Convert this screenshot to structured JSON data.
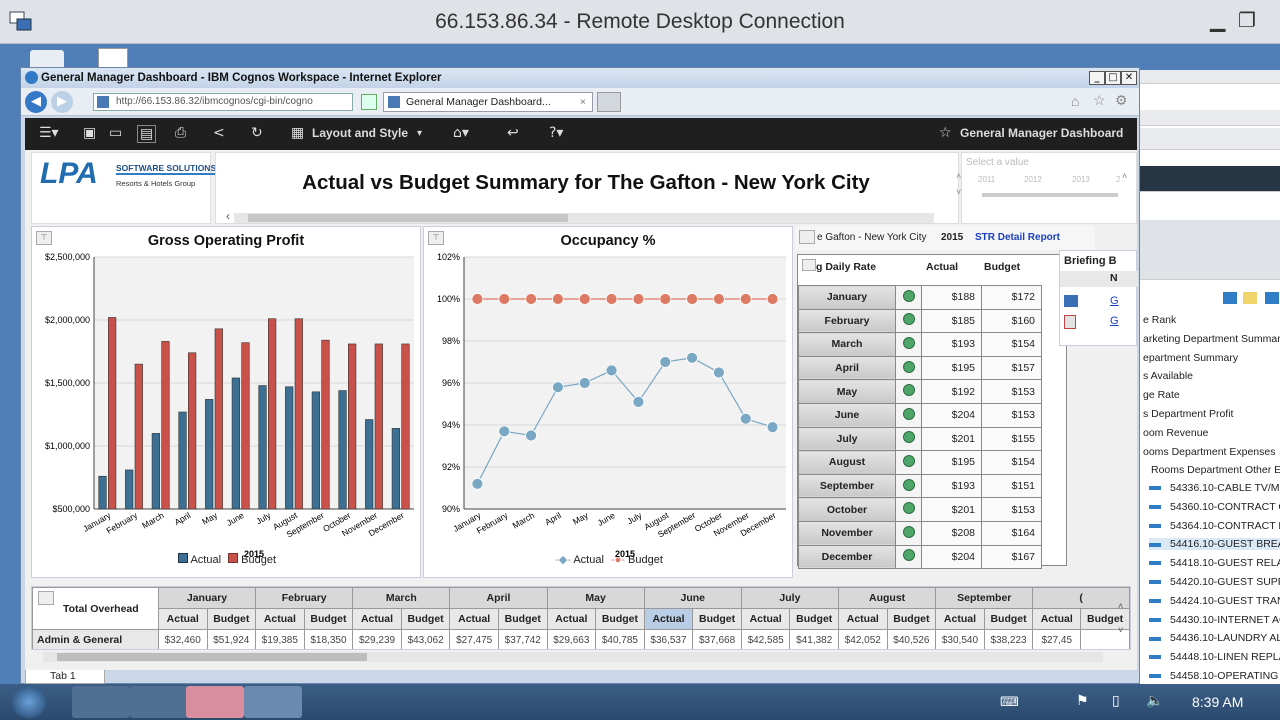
{
  "rdp": {
    "title": "66.153.86.34 - Remote Desktop Connection"
  },
  "ie": {
    "title": "General Manager Dashboard - IBM Cognos Workspace - Internet Explorer",
    "address": "http://66.153.86.32/ibmcognos/cgi-bin/cogno",
    "tab_label": "General Manager Dashboard..."
  },
  "cognos_toolbar": {
    "layout_label": "Layout and Style",
    "dashboard_name": "General Manager Dashboard"
  },
  "header": {
    "logo_main": "LPA",
    "logo_sub1": "SOFTWARE SOLUTIONS",
    "logo_sub2": "Resorts & Hotels Group",
    "title": "Actual vs Budget Summary for The Gafton - New York City",
    "select_placeholder": "Select a value",
    "years": [
      "2011",
      "2012",
      "2013",
      "2"
    ]
  },
  "gop_chart": {
    "title": "Gross Operating Profit",
    "xlabel": "2015",
    "legend": [
      "Actual",
      "Budget"
    ]
  },
  "occ_chart": {
    "title": "Occupancy %",
    "xlabel": "2015",
    "legend": [
      "Actual",
      "Budget"
    ]
  },
  "chart_data": [
    {
      "type": "bar",
      "title": "Gross Operating Profit",
      "xlabel": "2015",
      "categories": [
        "January",
        "February",
        "March",
        "April",
        "May",
        "June",
        "July",
        "August",
        "September",
        "October",
        "November",
        "December"
      ],
      "ylim": [
        500000,
        2500000
      ],
      "yticks": [
        "$500,000",
        "$1,000,000",
        "$1,500,000",
        "$2,000,000",
        "$2,500,000"
      ],
      "series": [
        {
          "name": "Actual",
          "color": "#3b6f93",
          "values": [
            760000,
            810000,
            1100000,
            1270000,
            1370000,
            1540000,
            1480000,
            1470000,
            1430000,
            1440000,
            1210000,
            1140000
          ]
        },
        {
          "name": "Budget",
          "color": "#c8524a",
          "values": [
            2020000,
            1650000,
            1830000,
            1740000,
            1930000,
            1820000,
            2010000,
            2010000,
            1840000,
            1810000,
            1810000,
            1810000
          ]
        }
      ]
    },
    {
      "type": "line",
      "title": "Occupancy %",
      "xlabel": "2015",
      "categories": [
        "January",
        "February",
        "March",
        "April",
        "May",
        "June",
        "July",
        "August",
        "September",
        "October",
        "November",
        "December"
      ],
      "ylim": [
        90,
        102
      ],
      "yticks": [
        "90%",
        "92%",
        "94%",
        "96%",
        "98%",
        "100%",
        "102%"
      ],
      "series": [
        {
          "name": "Actual",
          "color": "#7aa8c4",
          "values": [
            91.2,
            93.7,
            93.5,
            95.8,
            96.0,
            96.6,
            95.1,
            97.0,
            97.2,
            96.5,
            94.3,
            93.9
          ]
        },
        {
          "name": "Budget",
          "color": "#dd7a64",
          "values": [
            100,
            100,
            100,
            100,
            100,
            100,
            100,
            100,
            100,
            100,
            100,
            100
          ]
        }
      ]
    }
  ],
  "rate_panel": {
    "hotel": "e Gafton - New York City",
    "year": "2015",
    "link": "STR Detail Report",
    "col0": "g Daily Rate",
    "col_actual": "Actual",
    "col_budget": "Budget",
    "rows": [
      {
        "month": "January",
        "actual": "$188",
        "budget": "$172"
      },
      {
        "month": "February",
        "actual": "$185",
        "budget": "$160"
      },
      {
        "month": "March",
        "actual": "$193",
        "budget": "$154"
      },
      {
        "month": "April",
        "actual": "$195",
        "budget": "$157"
      },
      {
        "month": "May",
        "actual": "$192",
        "budget": "$153"
      },
      {
        "month": "June",
        "actual": "$204",
        "budget": "$153"
      },
      {
        "month": "July",
        "actual": "$201",
        "budget": "$155"
      },
      {
        "month": "August",
        "actual": "$195",
        "budget": "$154"
      },
      {
        "month": "September",
        "actual": "$193",
        "budget": "$151"
      },
      {
        "month": "October",
        "actual": "$201",
        "budget": "$153"
      },
      {
        "month": "November",
        "actual": "$208",
        "budget": "$164"
      },
      {
        "month": "December",
        "actual": "$204",
        "budget": "$167"
      }
    ]
  },
  "briefing": {
    "title": "Briefing B",
    "col": "N",
    "link1": "G",
    "link2": "G"
  },
  "overhead": {
    "corner": "Total Overhead",
    "row_label": "Admin & General",
    "months": [
      "January",
      "February",
      "March",
      "April",
      "May",
      "June",
      "July",
      "August",
      "September",
      "("
    ],
    "sub_actual": "Actual",
    "sub_budget": "Budget",
    "values": [
      "$32,460",
      "$51,924",
      "$19,385",
      "$18,350",
      "$29,239",
      "$43,062",
      "$27,475",
      "$37,742",
      "$29,663",
      "$40,785",
      "$36,537",
      "$37,668",
      "$42,585",
      "$41,382",
      "$42,052",
      "$40,526",
      "$30,540",
      "$38,223",
      "$27,45"
    ]
  },
  "workspace_tab": "Tab 1",
  "bg_tree": {
    "items": [
      "e Rank",
      "arketing Department Summar",
      "epartment Summary",
      "s Available",
      "ge Rate",
      "s Department Profit",
      "oom Revenue",
      "ooms Department Expenses",
      "Rooms Department Other Ex"
    ],
    "accounts": [
      "54336.10-CABLE TV/MO",
      "54360.10-CONTRACT CL",
      "54364.10-CONTRACT LA",
      "54416.10-GUEST BREAK",
      "54418.10-GUEST RELAT",
      "54420.10-GUEST SUPPL",
      "54424.10-GUEST TRANS",
      "54430.10-INTERNET AC",
      "54436.10-LAUNDRY ALL",
      "54448.10-LINEN REPLAC",
      "54458.10-OPERATING S"
    ]
  },
  "taskbar": {
    "time": "8:39 AM"
  }
}
